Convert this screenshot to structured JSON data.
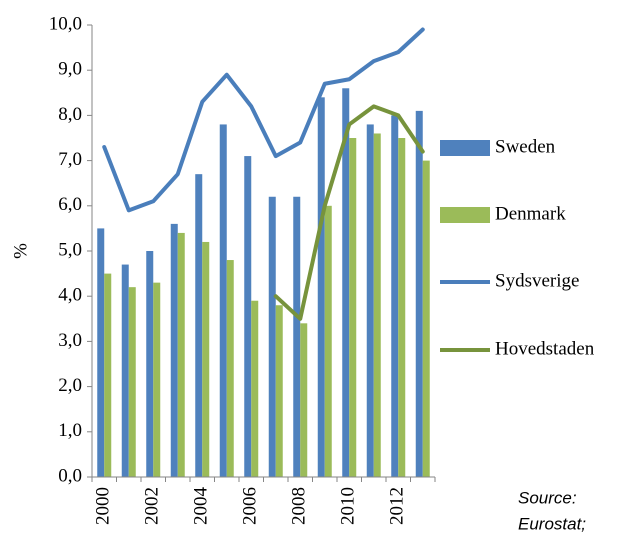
{
  "chart_data": {
    "type": "bar",
    "y_label": "%",
    "annotation": [
      "Source:",
      "Eurostat;"
    ],
    "categories": [
      "2000",
      null,
      "2002",
      null,
      "2004",
      null,
      "2006",
      null,
      "2008",
      null,
      "2010",
      null,
      "2012",
      null
    ],
    "ylim": [
      0,
      10
    ],
    "yticks": [
      {
        "value": 0,
        "label": "0,0"
      },
      {
        "value": 1,
        "label": "1,0"
      },
      {
        "value": 2,
        "label": "2,0"
      },
      {
        "value": 3,
        "label": "3,0"
      },
      {
        "value": 4,
        "label": "4,0"
      },
      {
        "value": 5,
        "label": "5,0"
      },
      {
        "value": 6,
        "label": "6,0"
      },
      {
        "value": 7,
        "label": "7,0"
      },
      {
        "value": 8,
        "label": "8,0"
      },
      {
        "value": 9,
        "label": "9,0"
      },
      {
        "value": 10,
        "label": "10,0"
      }
    ],
    "series": [
      {
        "name": "Sweden",
        "type": "bar",
        "color": "#4f81bd",
        "values": [
          5.5,
          4.7,
          5.0,
          5.6,
          6.7,
          7.8,
          7.1,
          6.2,
          6.2,
          8.4,
          8.6,
          7.8,
          8.0,
          8.1
        ]
      },
      {
        "name": "Denmark",
        "type": "bar",
        "color": "#9bbb59",
        "values": [
          4.5,
          4.2,
          4.3,
          5.4,
          5.2,
          4.8,
          3.9,
          3.8,
          3.4,
          6.0,
          7.5,
          7.6,
          7.5,
          7.0
        ]
      },
      {
        "name": "Sydsverige",
        "type": "line",
        "color": "#4a7ebb",
        "values": [
          7.3,
          5.9,
          6.1,
          6.7,
          8.3,
          8.9,
          8.2,
          7.1,
          7.4,
          8.7,
          8.8,
          9.2,
          9.4,
          9.9
        ]
      },
      {
        "name": "Hovedstaden",
        "type": "line",
        "color": "#77933c",
        "values": [
          null,
          null,
          null,
          null,
          null,
          null,
          null,
          4.0,
          3.5,
          6.0,
          7.8,
          8.2,
          8.0,
          7.2
        ]
      }
    ]
  }
}
